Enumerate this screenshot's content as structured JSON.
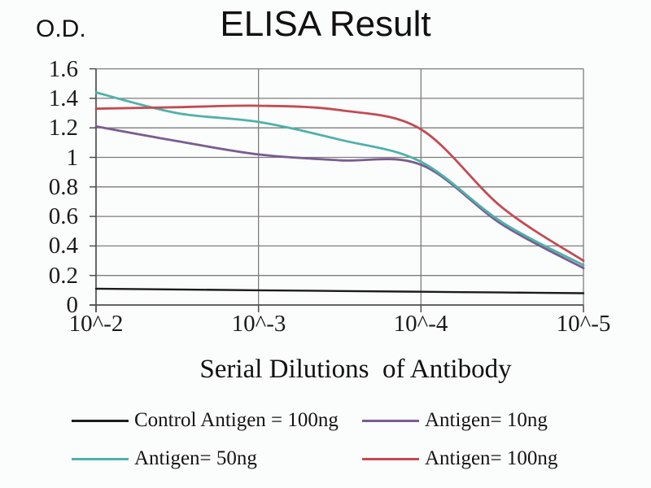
{
  "chart_data": {
    "type": "line",
    "title": "ELISA Result",
    "ylabel": "O.D.",
    "xlabel": "Serial Dilutions  of Antibody",
    "categories": [
      "10^-2",
      "10^-3",
      "10^-4",
      "10^-5"
    ],
    "x_ticklabels": [
      "10^-2",
      "10^-3",
      "10^-4",
      "10^-5"
    ],
    "y_ticklabels": [
      "0",
      "0.2",
      "0.4",
      "0.6",
      "0.8",
      "1",
      "1.2",
      "1.4",
      "1.6"
    ],
    "ylim": [
      0,
      1.6
    ],
    "y_tick_step": 0.2,
    "grid": true,
    "legend_position": "bottom",
    "axis_color": "#4f4f4f",
    "grid_color": "#7d7d7d",
    "series": [
      {
        "name": "Control Antigen = 100ng",
        "color": "#1c1c1c",
        "values": [
          0.11,
          0.1,
          0.09,
          0.08
        ],
        "samples_x": [
          0,
          0.5,
          1,
          1.5,
          2,
          2.5,
          3
        ],
        "samples_y": [
          0.11,
          0.105,
          0.1,
          0.095,
          0.09,
          0.085,
          0.08
        ]
      },
      {
        "name": "Antigen= 10ng",
        "color": "#7a5c90",
        "values": [
          1.21,
          1.02,
          0.95,
          0.25
        ],
        "samples_x": [
          0,
          0.5,
          1,
          1.5,
          2,
          2.5,
          3
        ],
        "samples_y": [
          1.21,
          1.11,
          1.02,
          0.98,
          0.95,
          0.545,
          0.25
        ]
      },
      {
        "name": "Antigen= 50ng",
        "color": "#4eb1ab",
        "values": [
          1.44,
          1.24,
          0.97,
          0.27
        ],
        "samples_x": [
          0,
          0.5,
          1,
          1.5,
          2,
          2.5,
          3
        ],
        "samples_y": [
          1.44,
          1.3,
          1.24,
          1.12,
          0.97,
          0.56,
          0.27
        ]
      },
      {
        "name": "Antigen= 100ng",
        "color": "#c44a52",
        "values": [
          1.33,
          1.35,
          1.19,
          0.3
        ],
        "samples_x": [
          0,
          0.5,
          1,
          1.5,
          2,
          2.5,
          3
        ],
        "samples_y": [
          1.33,
          1.34,
          1.35,
          1.32,
          1.19,
          0.66,
          0.3
        ]
      }
    ]
  }
}
